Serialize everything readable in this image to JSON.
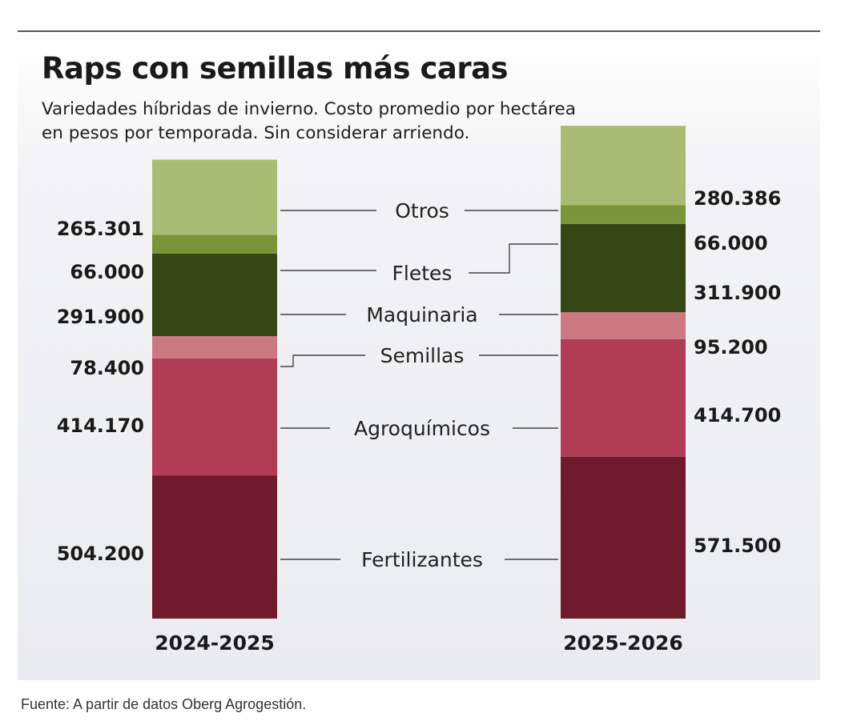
{
  "header": {
    "title": "Raps con semillas más caras",
    "subtitle": "Variedades híbridas de invierno. Costo promedio por hectárea en pesos por temporada. Sin considerar arriendo."
  },
  "source": "Fuente: A partir de datos Oberg Agrogestión.",
  "chart_data": {
    "type": "bar",
    "stacked": true,
    "title": "Raps con semillas más caras",
    "subtitle": "Variedades híbridas de invierno. Costo promedio por hectárea en pesos por temporada. Sin considerar arriendo.",
    "categories": [
      "2024-2025",
      "2025-2026"
    ],
    "series": [
      {
        "name": "Fertilizantes",
        "values": [
          504200,
          571500
        ],
        "labels": [
          "504.200",
          "571.500"
        ],
        "color": "#6f1a2d"
      },
      {
        "name": "Agroquímicos",
        "values": [
          414170,
          414700
        ],
        "labels": [
          "414.170",
          "414.700"
        ],
        "color": "#b03c55"
      },
      {
        "name": "Semillas",
        "values": [
          78400,
          95200
        ],
        "labels": [
          "78.400",
          "95.200"
        ],
        "color": "#cc7883"
      },
      {
        "name": "Maquinaria",
        "values": [
          291900,
          311900
        ],
        "labels": [
          "291.900",
          "311.900"
        ],
        "color": "#354714"
      },
      {
        "name": "Fletes",
        "values": [
          66000,
          66000
        ],
        "labels": [
          "66.000",
          "66.000"
        ],
        "color": "#7a9439"
      },
      {
        "name": "Otros",
        "values": [
          265301,
          280386
        ],
        "labels": [
          "265.301",
          "280.386"
        ],
        "color": "#a9bc74"
      }
    ],
    "legend": "center, between bars",
    "grid": false,
    "xlabel": "",
    "ylabel": ""
  }
}
